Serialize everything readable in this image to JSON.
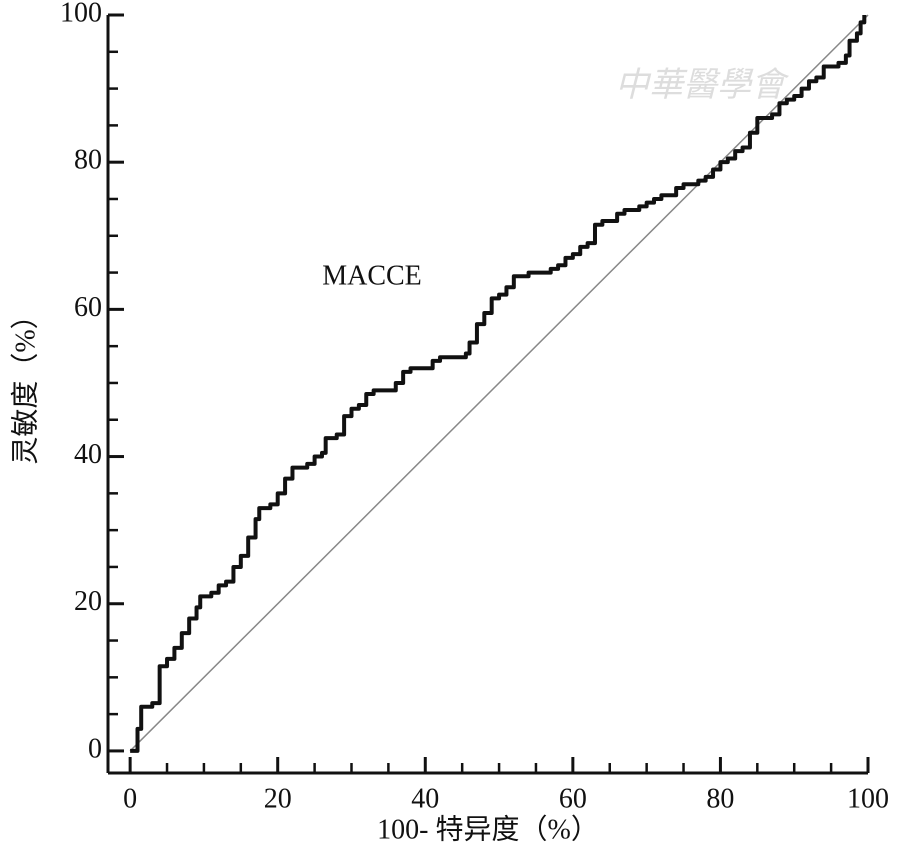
{
  "chart_data": {
    "type": "line",
    "xlabel": "100- 特异度（%）",
    "ylabel": "灵敏度（%）",
    "annotation": "MACCE",
    "watermark": "中華醫學會",
    "xlim": [
      -3,
      100
    ],
    "ylim": [
      -3,
      100
    ],
    "xticks": [
      0,
      20,
      40,
      60,
      80,
      100
    ],
    "yticks": [
      0,
      20,
      40,
      60,
      80,
      100
    ],
    "xminorticks": [
      5,
      10,
      15,
      25,
      30,
      35,
      45,
      50,
      55,
      65,
      70,
      75,
      85,
      90,
      95
    ],
    "yminorticks": [
      5,
      10,
      15,
      25,
      30,
      35,
      45,
      50,
      55,
      65,
      70,
      75,
      85,
      90,
      95
    ],
    "series": [
      {
        "color": "#888888",
        "line_width": 1.5,
        "x": [
          0,
          100
        ],
        "values": [
          0,
          100
        ]
      },
      {
        "color": "#111111",
        "line_width": 4,
        "step": true,
        "x": [
          0,
          1,
          1.5,
          3,
          4,
          4,
          5,
          6,
          7,
          8,
          9,
          9.5,
          11,
          12,
          13,
          14,
          15,
          16,
          17,
          17.5,
          19,
          20,
          21,
          22,
          24,
          25,
          26,
          26.5,
          28,
          29,
          30,
          31,
          32,
          33,
          35,
          36,
          37,
          38,
          40,
          41,
          42,
          44,
          45.5,
          46,
          47,
          48,
          49,
          50,
          51,
          52,
          54,
          56,
          57,
          58,
          59,
          60,
          61,
          62,
          63,
          64,
          66,
          67,
          69,
          70,
          71,
          72,
          74,
          75,
          77,
          78,
          79,
          80,
          81,
          82,
          83,
          84,
          85,
          86,
          87,
          88,
          89,
          90,
          91,
          92,
          93,
          94,
          95,
          96,
          97,
          97.5,
          98.5,
          99,
          99.5
        ],
        "values": [
          0,
          3,
          6,
          6.5,
          7,
          11.5,
          12.5,
          14,
          16,
          18,
          19.5,
          21,
          21.5,
          22.5,
          23,
          25,
          26.5,
          29,
          31.5,
          33,
          33.5,
          35,
          37,
          38.5,
          39,
          40,
          40.5,
          42.5,
          43,
          45.5,
          46.5,
          47,
          48.5,
          49,
          49,
          50,
          51.5,
          52,
          52,
          53,
          53.5,
          53.5,
          54,
          55.5,
          58,
          59.5,
          61.5,
          62,
          63,
          64.5,
          65,
          65,
          65.5,
          66,
          67,
          67.5,
          68.5,
          69,
          71.5,
          72,
          73,
          73.5,
          74,
          74.5,
          75,
          75.5,
          76.5,
          77,
          77.5,
          78,
          79,
          80,
          80.5,
          81.5,
          82,
          84,
          86,
          86,
          86.5,
          88,
          88.5,
          89,
          90,
          91,
          91.5,
          93,
          93,
          93.5,
          94.5,
          96.5,
          97.5,
          99,
          100
        ]
      }
    ]
  }
}
